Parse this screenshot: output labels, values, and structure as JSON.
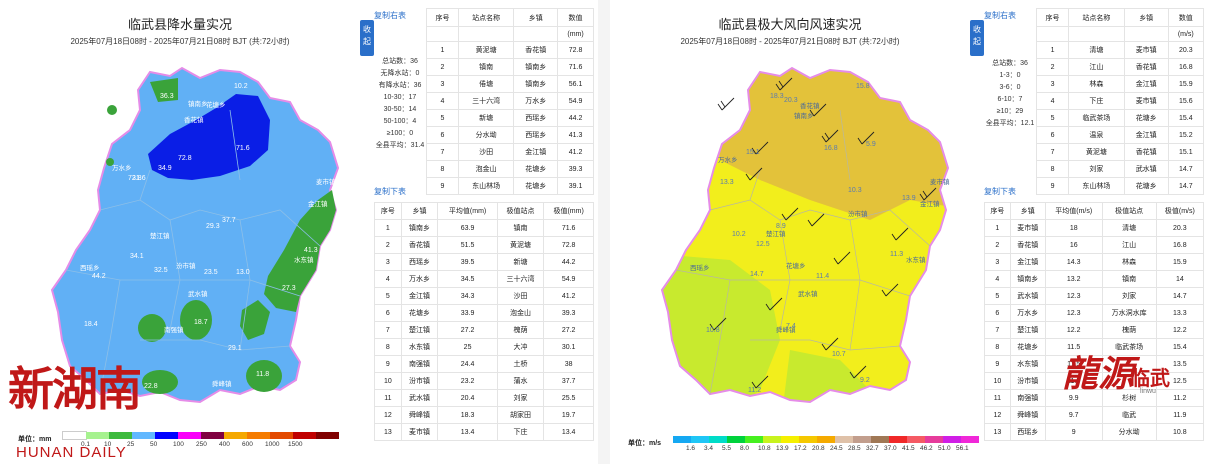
{
  "rain": {
    "title": "临武县降水量实况",
    "subtitle": "2025年07月18日08时 - 2025年07月21日08时 BJT (共:72小时)",
    "collapse_label": "收起",
    "copy_right_label": "复制右表",
    "copy_bottom_label": "复制下表",
    "stats": [
      "总站数：36",
      "无降水站：0",
      "有降水站：36",
      "10-30：17",
      "30-50：14",
      "50-100：4",
      "≥100：0",
      "全县平均：31.4"
    ],
    "station_table": {
      "headers": [
        "序号",
        "站点名称",
        "乡镇",
        "数值"
      ],
      "unit": "(mm)",
      "rows": [
        [
          "1",
          "黄泥塘",
          "香花镇",
          "72.8"
        ],
        [
          "2",
          "镇南",
          "镇南乡",
          "71.6"
        ],
        [
          "3",
          "倦塘",
          "镇南乡",
          "56.1"
        ],
        [
          "4",
          "三十六湾",
          "万水乡",
          "54.9"
        ],
        [
          "5",
          "新塘",
          "西瑶乡",
          "44.2"
        ],
        [
          "6",
          "分水坳",
          "西瑶乡",
          "41.3"
        ],
        [
          "7",
          "沙田",
          "金江镇",
          "41.2"
        ],
        [
          "8",
          "泡金山",
          "花塘乡",
          "39.3"
        ],
        [
          "9",
          "东山林场",
          "花塘乡",
          "39.1"
        ]
      ]
    },
    "town_table": {
      "headers": [
        "序号",
        "乡镇",
        "平均值(mm)",
        "极值站点",
        "极值(mm)"
      ],
      "rows": [
        [
          "1",
          "镇南乡",
          "63.9",
          "镇南",
          "71.6"
        ],
        [
          "2",
          "香花镇",
          "51.5",
          "黄泥塘",
          "72.8"
        ],
        [
          "3",
          "西瑶乡",
          "39.5",
          "新塘",
          "44.2"
        ],
        [
          "4",
          "万水乡",
          "34.5",
          "三十六湾",
          "54.9"
        ],
        [
          "5",
          "金江镇",
          "34.3",
          "沙田",
          "41.2"
        ],
        [
          "6",
          "花塘乡",
          "33.9",
          "泡金山",
          "39.3"
        ],
        [
          "7",
          "楚江镇",
          "27.2",
          "槐荫",
          "27.2"
        ],
        [
          "8",
          "水东镇",
          "25",
          "大冲",
          "30.1"
        ],
        [
          "9",
          "南强镇",
          "24.4",
          "土桥",
          "38"
        ],
        [
          "10",
          "汾市镇",
          "23.2",
          "蒲水",
          "37.7"
        ],
        [
          "11",
          "武水镇",
          "20.4",
          "刘家",
          "25.5"
        ],
        [
          "12",
          "舜峰镇",
          "18.3",
          "胡家田",
          "19.7"
        ],
        [
          "13",
          "麦市镇",
          "13.4",
          "下庄",
          "13.4"
        ]
      ]
    },
    "legend": {
      "label": "单位：mm",
      "ticks": [
        "0.1",
        "10",
        "25",
        "50",
        "100",
        "250",
        "400",
        "600",
        "1000",
        "1500"
      ],
      "colors": [
        "#ffffff",
        "#a6f28f",
        "#3dba3d",
        "#61b8ff",
        "#0000ff",
        "#fa00fa",
        "#800040",
        "#f5a800",
        "#f57c00",
        "#e34a00",
        "#c00000",
        "#800000"
      ]
    },
    "map_labels": [
      "花塘乡",
      "万水乡",
      "香花镇",
      "楚江镇",
      "西瑶乡",
      "汾市镇",
      "麦市镇",
      "水东镇",
      "南强镇",
      "舜峰镇",
      "武水镇",
      "金江镇",
      "镇南乡"
    ],
    "map_values": [
      "10.2",
      "36.3",
      "24.9",
      "72.8",
      "34.9",
      "71.6",
      "31.6",
      "37.7",
      "29.3",
      "34.1",
      "44.2",
      "32.5",
      "23.5",
      "11.8",
      "18.7",
      "22.8",
      "29.1",
      "18.4",
      "27.3",
      "41.3",
      "45.9",
      "13.0"
    ]
  },
  "wind": {
    "title": "临武县极大风向风速实况",
    "subtitle": "2025年07月18日08时 - 2025年07月21日08时 BJT (共:72小时)",
    "collapse_label": "收起",
    "copy_right_label": "复制右表",
    "copy_bottom_label": "复制下表",
    "stats": [
      "总站数：36",
      "1-3：0",
      "3-6：0",
      "6-10：7",
      "≥10：29",
      "全县平均：12.1"
    ],
    "station_table": {
      "headers": [
        "序号",
        "站点名称",
        "乡镇",
        "数值"
      ],
      "unit": "(m/s)",
      "rows": [
        [
          "1",
          "清塘",
          "麦市镇",
          "20.3"
        ],
        [
          "2",
          "江山",
          "香花镇",
          "16.8"
        ],
        [
          "3",
          "林森",
          "金江镇",
          "15.9"
        ],
        [
          "4",
          "下庄",
          "麦市镇",
          "15.6"
        ],
        [
          "5",
          "临武茶场",
          "花塘乡",
          "15.4"
        ],
        [
          "6",
          "温泉",
          "金江镇",
          "15.2"
        ],
        [
          "7",
          "黄泥塘",
          "香花镇",
          "15.1"
        ],
        [
          "8",
          "刘家",
          "武水镇",
          "14.7"
        ],
        [
          "9",
          "东山林场",
          "花塘乡",
          "14.7"
        ]
      ]
    },
    "town_table": {
      "headers": [
        "序号",
        "乡镇",
        "平均值(m/s)",
        "极值站点",
        "极值(m/s)"
      ],
      "rows": [
        [
          "1",
          "麦市镇",
          "18",
          "清塘",
          "20.3"
        ],
        [
          "2",
          "香花镇",
          "16",
          "江山",
          "16.8"
        ],
        [
          "3",
          "金江镇",
          "14.3",
          "林森",
          "15.9"
        ],
        [
          "4",
          "镇南乡",
          "13.2",
          "镇南",
          "14"
        ],
        [
          "5",
          "武水镇",
          "12.3",
          "刘家",
          "14.7"
        ],
        [
          "6",
          "万水乡",
          "12.3",
          "万水洞水库",
          "13.3"
        ],
        [
          "7",
          "楚江镇",
          "12.2",
          "槐荫",
          "12.2"
        ],
        [
          "8",
          "花塘乡",
          "11.5",
          "临武茶场",
          "15.4"
        ],
        [
          "9",
          "水东镇",
          "11.5",
          "",
          "13.5"
        ],
        [
          "10",
          "汾市镇",
          "11.5",
          "",
          "12.5"
        ],
        [
          "11",
          "南强镇",
          "9.9",
          "杉树",
          "11.2"
        ],
        [
          "12",
          "舜峰镇",
          "9.7",
          "临武",
          "11.9"
        ],
        [
          "13",
          "西瑶乡",
          "9",
          "分水坳",
          "10.8"
        ]
      ]
    },
    "legend": {
      "label": "单位：m/s",
      "ticks": [
        "1.6",
        "3.4",
        "5.5",
        "8.0",
        "10.8",
        "13.9",
        "17.2",
        "20.8",
        "24.5",
        "28.5",
        "32.7",
        "37.0",
        "41.5",
        "46.2",
        "51.0",
        "56.1"
      ],
      "colors": [
        "#15a8f2",
        "#1fc6f6",
        "#00dcc8",
        "#00d23c",
        "#46f020",
        "#c8f31e",
        "#f5f000",
        "#f5c800",
        "#f5aa00",
        "#dfc1a8",
        "#c29e8d",
        "#a07855",
        "#f02828",
        "#f55a64",
        "#e63c9b",
        "#d01ee6",
        "#f028d8"
      ]
    },
    "map_labels": [
      "万水乡",
      "香花镇",
      "楚江镇",
      "西瑶乡",
      "花塘乡",
      "麦市镇",
      "汾市镇",
      "水东镇",
      "武水镇",
      "舜峰镇",
      "金江镇",
      "镇南乡"
    ],
    "map_values": [
      "18.3",
      "15.1",
      "16.8",
      "13.3",
      "10.2",
      "8.9",
      "10.3",
      "14.7",
      "11.4",
      "13.9",
      "11.3",
      "12.5",
      "10.8",
      "7.4",
      "10.7",
      "9.2",
      "11.2",
      "15.8",
      "20.3",
      "5.9"
    ]
  },
  "watermarks": {
    "left_big": "新湖南",
    "left_sub": "HUNAN DAILY",
    "right_big": "龍源",
    "right_sub": "临武",
    "right_tiny": "linwu"
  }
}
